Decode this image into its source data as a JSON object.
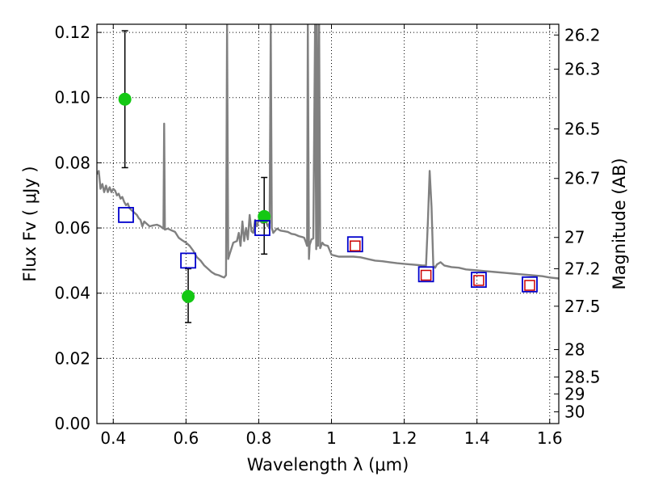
{
  "chart_data": {
    "type": "scatter",
    "title": "",
    "xlabel": "Wavelength  λ (μm)",
    "ylabel": "Flux  Fv  ( μJy )",
    "ylabel_right": "Magnitude (AB)",
    "xlim": [
      0.355,
      1.625
    ],
    "ylim": [
      0.0,
      0.1225
    ],
    "grid": true,
    "x_ticks": [
      0.4,
      0.6,
      0.8,
      1.0,
      1.2,
      1.4,
      1.6
    ],
    "x_tick_labels": [
      "0.4",
      "0.6",
      "0.8",
      "1",
      "1.2",
      "1.4",
      "1.6"
    ],
    "y_ticks": [
      0.0,
      0.02,
      0.04,
      0.06,
      0.08,
      0.1,
      0.12
    ],
    "y_tick_labels": [
      "0.00",
      "0.02",
      "0.04",
      "0.06",
      "0.08",
      "0.10",
      "0.12"
    ],
    "right_ticks": [
      {
        "label": "26.2",
        "flux": 0.1192
      },
      {
        "label": "26.3",
        "flux": 0.1087
      },
      {
        "label": "26.5",
        "flux": 0.0904
      },
      {
        "label": "26.7",
        "flux": 0.0752
      },
      {
        "label": "27",
        "flux": 0.0571
      },
      {
        "label": "27.2",
        "flux": 0.0475
      },
      {
        "label": "27.5",
        "flux": 0.036
      },
      {
        "label": "28",
        "flux": 0.0227
      },
      {
        "label": "28.5",
        "flux": 0.0143
      },
      {
        "label": "29",
        "flux": 0.0091
      },
      {
        "label": "30",
        "flux": 0.0036
      }
    ],
    "series": [
      {
        "kind": "line",
        "color": "#808080",
        "points": [
          [
            0.355,
            0.0765
          ],
          [
            0.36,
            0.0775
          ],
          [
            0.365,
            0.072
          ],
          [
            0.37,
            0.0735
          ],
          [
            0.375,
            0.071
          ],
          [
            0.38,
            0.073
          ],
          [
            0.385,
            0.071
          ],
          [
            0.39,
            0.0725
          ],
          [
            0.395,
            0.071
          ],
          [
            0.4,
            0.072
          ],
          [
            0.405,
            0.0715
          ],
          [
            0.41,
            0.07
          ],
          [
            0.415,
            0.0705
          ],
          [
            0.42,
            0.069
          ],
          [
            0.425,
            0.0695
          ],
          [
            0.43,
            0.068
          ],
          [
            0.435,
            0.067
          ],
          [
            0.44,
            0.0675
          ],
          [
            0.445,
            0.066
          ],
          [
            0.45,
            0.0655
          ],
          [
            0.455,
            0.065
          ],
          [
            0.46,
            0.0645
          ],
          [
            0.465,
            0.064
          ],
          [
            0.47,
            0.063
          ],
          [
            0.475,
            0.0625
          ],
          [
            0.48,
            0.0605
          ],
          [
            0.485,
            0.062
          ],
          [
            0.49,
            0.0615
          ],
          [
            0.5,
            0.0605
          ],
          [
            0.51,
            0.0608
          ],
          [
            0.52,
            0.061
          ],
          [
            0.53,
            0.0605
          ],
          [
            0.535,
            0.06
          ],
          [
            0.538,
            0.0598
          ],
          [
            0.54,
            0.092
          ],
          [
            0.542,
            0.0595
          ],
          [
            0.55,
            0.0598
          ],
          [
            0.56,
            0.0593
          ],
          [
            0.57,
            0.0588
          ],
          [
            0.58,
            0.057
          ],
          [
            0.59,
            0.0562
          ],
          [
            0.6,
            0.0555
          ],
          [
            0.61,
            0.0545
          ],
          [
            0.62,
            0.053
          ],
          [
            0.63,
            0.051
          ],
          [
            0.64,
            0.05
          ],
          [
            0.65,
            0.0485
          ],
          [
            0.66,
            0.0475
          ],
          [
            0.67,
            0.0465
          ],
          [
            0.68,
            0.0458
          ],
          [
            0.69,
            0.0455
          ],
          [
            0.7,
            0.045
          ],
          [
            0.705,
            0.0448
          ],
          [
            0.71,
            0.0455
          ],
          [
            0.713,
            0.1225
          ],
          [
            0.716,
            0.0505
          ],
          [
            0.72,
            0.052
          ],
          [
            0.73,
            0.0555
          ],
          [
            0.74,
            0.056
          ],
          [
            0.745,
            0.0585
          ],
          [
            0.75,
            0.0545
          ],
          [
            0.755,
            0.062
          ],
          [
            0.76,
            0.056
          ],
          [
            0.765,
            0.06
          ],
          [
            0.77,
            0.0565
          ],
          [
            0.775,
            0.064
          ],
          [
            0.78,
            0.059
          ],
          [
            0.785,
            0.0585
          ],
          [
            0.79,
            0.0625
          ],
          [
            0.795,
            0.0605
          ],
          [
            0.8,
            0.0625
          ],
          [
            0.81,
            0.0615
          ],
          [
            0.82,
            0.062
          ],
          [
            0.825,
            0.0605
          ],
          [
            0.83,
            0.0615
          ],
          [
            0.833,
            0.1225
          ],
          [
            0.836,
            0.06
          ],
          [
            0.84,
            0.0585
          ],
          [
            0.85,
            0.0598
          ],
          [
            0.86,
            0.0592
          ],
          [
            0.87,
            0.059
          ],
          [
            0.88,
            0.0588
          ],
          [
            0.89,
            0.0582
          ],
          [
            0.9,
            0.058
          ],
          [
            0.91,
            0.0575
          ],
          [
            0.92,
            0.0572
          ],
          [
            0.925,
            0.057
          ],
          [
            0.93,
            0.0555
          ],
          [
            0.933,
            0.0545
          ],
          [
            0.935,
            0.1225
          ],
          [
            0.938,
            0.0505
          ],
          [
            0.94,
            0.0548
          ],
          [
            0.945,
            0.0565
          ],
          [
            0.95,
            0.0568
          ],
          [
            0.955,
            0.1225
          ],
          [
            0.958,
            0.0535
          ],
          [
            0.96,
            0.1225
          ],
          [
            0.963,
            0.0545
          ],
          [
            0.966,
            0.1225
          ],
          [
            0.969,
            0.0538
          ],
          [
            0.975,
            0.0555
          ],
          [
            0.98,
            0.0548
          ],
          [
            0.99,
            0.0545
          ],
          [
            1.0,
            0.0518
          ],
          [
            1.01,
            0.0515
          ],
          [
            1.02,
            0.0512
          ],
          [
            1.04,
            0.0512
          ],
          [
            1.06,
            0.0512
          ],
          [
            1.08,
            0.051
          ],
          [
            1.1,
            0.0505
          ],
          [
            1.12,
            0.05
          ],
          [
            1.14,
            0.0498
          ],
          [
            1.16,
            0.0495
          ],
          [
            1.18,
            0.0492
          ],
          [
            1.2,
            0.049
          ],
          [
            1.22,
            0.0488
          ],
          [
            1.24,
            0.0486
          ],
          [
            1.25,
            0.0485
          ],
          [
            1.26,
            0.0485
          ],
          [
            1.265,
            0.062
          ],
          [
            1.27,
            0.0775
          ],
          [
            1.275,
            0.0665
          ],
          [
            1.28,
            0.0485
          ],
          [
            1.285,
            0.0478
          ],
          [
            1.29,
            0.0488
          ],
          [
            1.3,
            0.0495
          ],
          [
            1.31,
            0.0485
          ],
          [
            1.33,
            0.048
          ],
          [
            1.35,
            0.0478
          ],
          [
            1.37,
            0.0473
          ],
          [
            1.4,
            0.047
          ],
          [
            1.42,
            0.0468
          ],
          [
            1.45,
            0.0465
          ],
          [
            1.48,
            0.0462
          ],
          [
            1.5,
            0.046
          ],
          [
            1.52,
            0.0458
          ],
          [
            1.55,
            0.0455
          ],
          [
            1.58,
            0.0452
          ],
          [
            1.6,
            0.0448
          ],
          [
            1.625,
            0.0445
          ]
        ]
      },
      {
        "kind": "scatter",
        "marker": "circle",
        "color": "#14c814",
        "points": [
          {
            "x": 0.432,
            "y": 0.0995,
            "err_low": 0.0785,
            "err_high": 0.1205
          },
          {
            "x": 0.606,
            "y": 0.039,
            "err_low": 0.031,
            "err_high": 0.0475
          },
          {
            "x": 0.815,
            "y": 0.0635,
            "err_low": 0.052,
            "err_high": 0.0755
          }
        ]
      },
      {
        "kind": "scatter",
        "marker": "square-open",
        "color": "#0000cc",
        "points": [
          {
            "x": 0.435,
            "y": 0.064
          },
          {
            "x": 0.606,
            "y": 0.05
          },
          {
            "x": 0.81,
            "y": 0.06
          },
          {
            "x": 1.065,
            "y": 0.055
          },
          {
            "x": 1.26,
            "y": 0.0458
          },
          {
            "x": 1.405,
            "y": 0.0441
          },
          {
            "x": 1.545,
            "y": 0.0427
          }
        ]
      },
      {
        "kind": "scatter",
        "marker": "square-open-small",
        "color": "#cc0000",
        "points": [
          {
            "x": 1.065,
            "y": 0.0545
          },
          {
            "x": 1.26,
            "y": 0.0455
          },
          {
            "x": 1.405,
            "y": 0.0439
          },
          {
            "x": 1.545,
            "y": 0.0424
          }
        ]
      }
    ]
  }
}
